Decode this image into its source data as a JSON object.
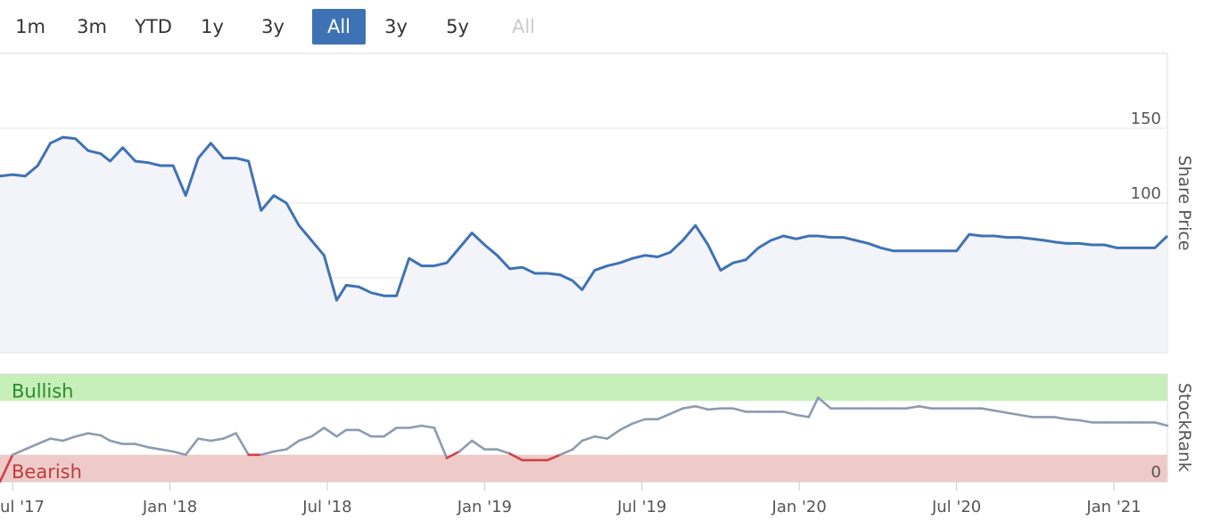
{
  "range_selector": {
    "buttons": [
      {
        "label": "1m",
        "state": "normal"
      },
      {
        "label": "3m",
        "state": "normal"
      },
      {
        "label": "YTD",
        "state": "normal"
      },
      {
        "label": "1y",
        "state": "normal"
      },
      {
        "label": "3y",
        "state": "normal"
      },
      {
        "label": "All",
        "state": "active"
      },
      {
        "label": "3y",
        "state": "normal"
      },
      {
        "label": "5y",
        "state": "normal"
      },
      {
        "label": "All",
        "state": "disabled"
      }
    ],
    "active_color": "#3f72b5"
  },
  "chart_data": [
    {
      "type": "line",
      "ylabel": "Share Price",
      "ylim": [
        0,
        200
      ],
      "yticks": [
        0,
        50,
        100,
        150
      ],
      "grid": true,
      "line_color": "#3f72b5",
      "fill_color": "#f3f4fa",
      "x_range": [
        2017.46,
        2021.17
      ],
      "series": [
        {
          "x": [
            2017.46,
            2017.5,
            2017.54,
            2017.58,
            2017.62,
            2017.66,
            2017.7,
            2017.74,
            2017.78,
            2017.81,
            2017.85,
            2017.89,
            2017.93,
            2017.97,
            2018.01,
            2018.05,
            2018.09,
            2018.13,
            2018.17,
            2018.21,
            2018.25,
            2018.29,
            2018.33,
            2018.37,
            2018.41,
            2018.45,
            2018.49,
            2018.53,
            2018.56,
            2018.6,
            2018.64,
            2018.68,
            2018.72,
            2018.76,
            2018.8,
            2018.84,
            2018.88,
            2018.92,
            2018.96,
            2019.0,
            2019.04,
            2019.08,
            2019.12,
            2019.16,
            2019.2,
            2019.24,
            2019.28,
            2019.31,
            2019.35,
            2019.39,
            2019.43,
            2019.47,
            2019.51,
            2019.55,
            2019.59,
            2019.63,
            2019.67,
            2019.71,
            2019.75,
            2019.79,
            2019.83,
            2019.87,
            2019.91,
            2019.95,
            2019.99,
            2020.03,
            2020.06,
            2020.1,
            2020.14,
            2020.18,
            2020.22,
            2020.26,
            2020.3,
            2020.34,
            2020.38,
            2020.42,
            2020.46,
            2020.5,
            2020.54,
            2020.58,
            2020.62,
            2020.66,
            2020.7,
            2020.74,
            2020.78,
            2020.81,
            2020.85,
            2020.89,
            2020.93,
            2020.97,
            2021.01,
            2021.05,
            2021.09,
            2021.13,
            2021.17
          ],
          "y": [
            118,
            119,
            118,
            125,
            140,
            144,
            143,
            135,
            133,
            128,
            137,
            128,
            127,
            125,
            125,
            105,
            130,
            140,
            130,
            130,
            128,
            95,
            105,
            100,
            85,
            75,
            65,
            35,
            45,
            44,
            40,
            38,
            38,
            63,
            58,
            58,
            60,
            70,
            80,
            72,
            65,
            56,
            57,
            53,
            53,
            52,
            48,
            42,
            55,
            58,
            60,
            63,
            65,
            64,
            67,
            75,
            85,
            72,
            55,
            60,
            62,
            70,
            75,
            78,
            76,
            78,
            78,
            77,
            77,
            75,
            73,
            70,
            68,
            68,
            68,
            68,
            68,
            68,
            79,
            78,
            78,
            77,
            77,
            76,
            75,
            74,
            73,
            73,
            72,
            72,
            70,
            70,
            70,
            70,
            78
          ],
          "name": ""
        }
      ]
    },
    {
      "type": "line",
      "ylabel": "StockRank",
      "ylim": [
        0,
        100
      ],
      "yticks": [
        0
      ],
      "bands": [
        {
          "label": "Bullish",
          "from": 75,
          "to": 100,
          "color": "#c6efb9"
        },
        {
          "label": "Bearish",
          "from": 0,
          "to": 25,
          "color": "#eecbc8"
        }
      ],
      "segment_colors": {
        "neutral": "#8d9bb0",
        "bullish": "#2e9a3a",
        "bearish": "#d0414a"
      },
      "series": [
        {
          "x": [
            2017.46,
            2017.5,
            2017.54,
            2017.58,
            2017.62,
            2017.66,
            2017.7,
            2017.74,
            2017.78,
            2017.81,
            2017.85,
            2017.89,
            2017.93,
            2017.97,
            2018.01,
            2018.05,
            2018.09,
            2018.13,
            2018.17,
            2018.21,
            2018.25,
            2018.29,
            2018.33,
            2018.37,
            2018.41,
            2018.45,
            2018.49,
            2018.53,
            2018.56,
            2018.6,
            2018.64,
            2018.68,
            2018.72,
            2018.76,
            2018.8,
            2018.84,
            2018.88,
            2018.92,
            2018.96,
            2019.0,
            2019.04,
            2019.08,
            2019.12,
            2019.16,
            2019.2,
            2019.24,
            2019.28,
            2019.31,
            2019.35,
            2019.39,
            2019.43,
            2019.47,
            2019.51,
            2019.55,
            2019.59,
            2019.63,
            2019.67,
            2019.71,
            2019.75,
            2019.79,
            2019.83,
            2019.87,
            2019.91,
            2019.95,
            2019.99,
            2020.03,
            2020.06,
            2020.1,
            2020.14,
            2020.18,
            2020.22,
            2020.26,
            2020.3,
            2020.34,
            2020.38,
            2020.42,
            2020.46,
            2020.5,
            2020.54,
            2020.58,
            2020.62,
            2020.66,
            2020.7,
            2020.74,
            2020.78,
            2020.81,
            2020.85,
            2020.89,
            2020.93,
            2020.97,
            2021.01,
            2021.05,
            2021.09,
            2021.13,
            2021.17
          ],
          "y": [
            0,
            25,
            30,
            35,
            40,
            38,
            42,
            45,
            43,
            38,
            35,
            35,
            32,
            30,
            28,
            25,
            40,
            38,
            40,
            45,
            25,
            25,
            28,
            30,
            38,
            42,
            50,
            42,
            48,
            48,
            42,
            42,
            50,
            50,
            52,
            50,
            22,
            28,
            38,
            30,
            30,
            26,
            20,
            20,
            20,
            25,
            30,
            38,
            42,
            40,
            48,
            54,
            58,
            58,
            63,
            68,
            70,
            67,
            68,
            68,
            65,
            65,
            65,
            65,
            62,
            60,
            78,
            68,
            68,
            68,
            68,
            68,
            68,
            68,
            70,
            68,
            68,
            68,
            68,
            68,
            66,
            64,
            62,
            60,
            60,
            60,
            58,
            57,
            55,
            55,
            55,
            55,
            55,
            55,
            52
          ],
          "name": ""
        }
      ]
    }
  ],
  "x_axis": {
    "tick_labels": [
      "ul '17",
      "Jan '18",
      "Jul '18",
      "Jan '19",
      "Jul '19",
      "Jan '20",
      "Jul '20",
      "Jan '21"
    ],
    "tick_values": [
      2017.5,
      2018.0,
      2018.5,
      2019.0,
      2019.5,
      2020.0,
      2020.5,
      2021.0
    ]
  }
}
